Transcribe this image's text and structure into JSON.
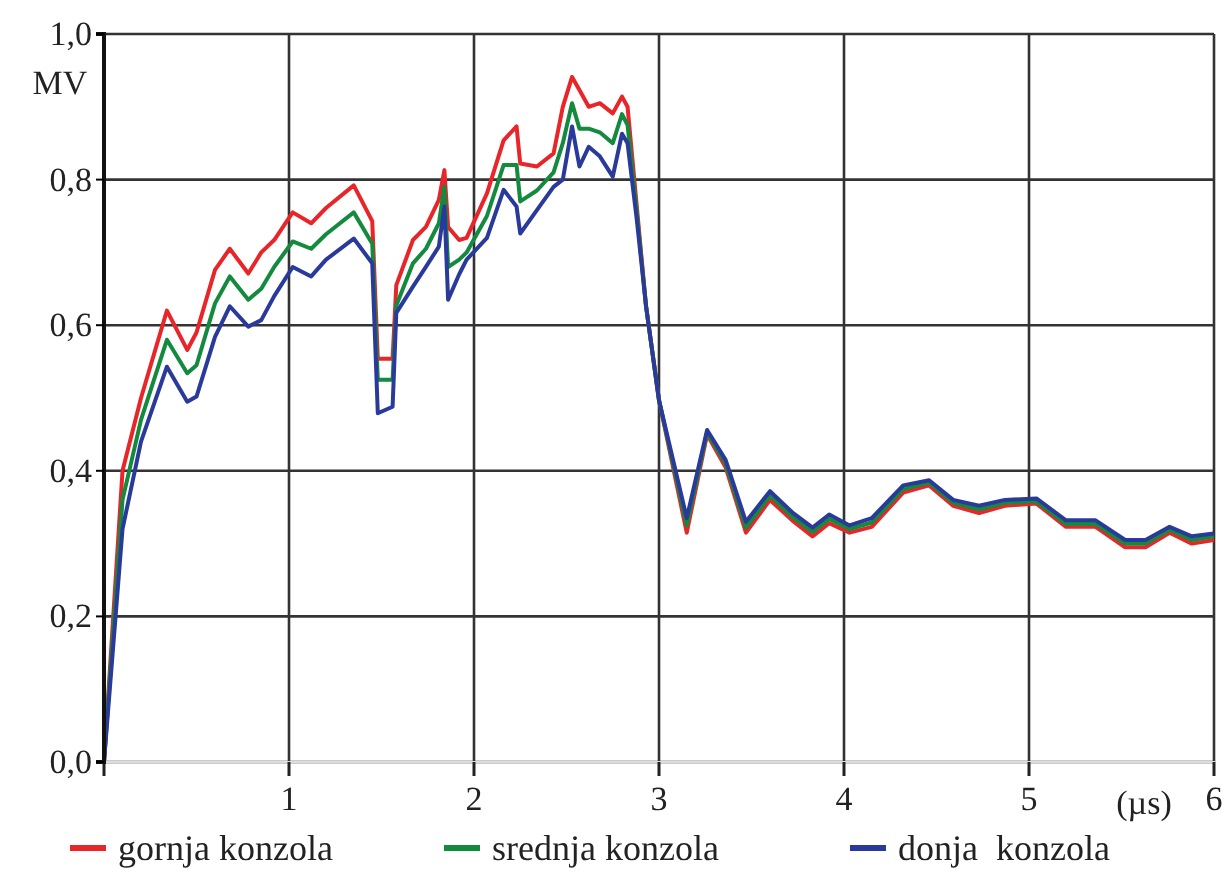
{
  "chart_data": {
    "type": "line",
    "xlabel": "(µs)",
    "ylabel": "MV",
    "x": [
      0,
      0.1,
      0.2,
      0.34,
      0.45,
      0.5,
      0.6,
      0.68,
      0.78,
      0.85,
      0.92,
      1.02,
      1.12,
      1.2,
      1.35,
      1.45,
      1.48,
      1.56,
      1.58,
      1.67,
      1.74,
      1.81,
      1.84,
      1.86,
      1.92,
      1.96,
      2.07,
      2.16,
      2.23,
      2.25,
      2.34,
      2.43,
      2.48,
      2.53,
      2.57,
      2.62,
      2.68,
      2.75,
      2.8,
      2.83,
      2.88,
      2.93,
      3.0,
      3.15,
      3.26,
      3.36,
      3.47,
      3.6,
      3.72,
      3.83,
      3.92,
      4.03,
      4.15,
      4.32,
      4.46,
      4.59,
      4.73,
      4.87,
      5.04,
      5.2,
      5.36,
      5.52,
      5.63,
      5.76,
      5.88,
      6.0
    ],
    "series": [
      {
        "name": "gornja konzola",
        "color": "#e8262a",
        "values": [
          0,
          0.4,
          0.5,
          0.62,
          0.566,
          0.59,
          0.676,
          0.705,
          0.671,
          0.7,
          0.717,
          0.755,
          0.74,
          0.761,
          0.792,
          0.743,
          0.554,
          0.554,
          0.655,
          0.717,
          0.735,
          0.772,
          0.813,
          0.735,
          0.717,
          0.72,
          0.781,
          0.854,
          0.873,
          0.822,
          0.818,
          0.836,
          0.9,
          0.941,
          0.923,
          0.9,
          0.905,
          0.891,
          0.914,
          0.9,
          0.763,
          0.626,
          0.497,
          0.315,
          0.45,
          0.405,
          0.315,
          0.36,
          0.332,
          0.31,
          0.328,
          0.315,
          0.323,
          0.37,
          0.38,
          0.352,
          0.342,
          0.352,
          0.355,
          0.323,
          0.323,
          0.295,
          0.295,
          0.315,
          0.3,
          0.305
        ]
      },
      {
        "name": "srednja konzola",
        "color": "#138a3e",
        "values": [
          0,
          0.36,
          0.47,
          0.58,
          0.534,
          0.545,
          0.63,
          0.667,
          0.635,
          0.65,
          0.68,
          0.715,
          0.705,
          0.725,
          0.755,
          0.712,
          0.525,
          0.525,
          0.627,
          0.685,
          0.705,
          0.74,
          0.79,
          0.68,
          0.69,
          0.7,
          0.75,
          0.82,
          0.82,
          0.77,
          0.785,
          0.81,
          0.85,
          0.905,
          0.87,
          0.87,
          0.865,
          0.85,
          0.89,
          0.875,
          0.755,
          0.626,
          0.497,
          0.325,
          0.453,
          0.41,
          0.322,
          0.366,
          0.337,
          0.316,
          0.334,
          0.32,
          0.329,
          0.375,
          0.384,
          0.356,
          0.347,
          0.356,
          0.358,
          0.327,
          0.327,
          0.3,
          0.3,
          0.319,
          0.305,
          0.31
        ]
      },
      {
        "name": "donja  konzola",
        "color": "#2a3a9a",
        "values": [
          0,
          0.32,
          0.44,
          0.543,
          0.495,
          0.502,
          0.584,
          0.626,
          0.598,
          0.607,
          0.64,
          0.68,
          0.667,
          0.69,
          0.719,
          0.685,
          0.479,
          0.488,
          0.617,
          0.653,
          0.68,
          0.708,
          0.763,
          0.635,
          0.67,
          0.69,
          0.72,
          0.786,
          0.763,
          0.726,
          0.758,
          0.79,
          0.8,
          0.873,
          0.818,
          0.845,
          0.832,
          0.804,
          0.863,
          0.85,
          0.745,
          0.626,
          0.497,
          0.335,
          0.456,
          0.415,
          0.33,
          0.372,
          0.343,
          0.322,
          0.34,
          0.325,
          0.335,
          0.38,
          0.387,
          0.36,
          0.352,
          0.36,
          0.362,
          0.332,
          0.332,
          0.305,
          0.305,
          0.323,
          0.31,
          0.314
        ]
      }
    ],
    "xlim": [
      0,
      6
    ],
    "xticks": [
      {
        "value": 0,
        "label": null
      },
      1,
      2,
      3,
      4,
      5,
      6
    ],
    "ylim": [
      0,
      1
    ],
    "yticks": [
      {
        "value": 0,
        "label": "0,0"
      },
      {
        "value": 0.2,
        "label": "0,2"
      },
      {
        "value": 0.4,
        "label": "0,4"
      },
      {
        "value": 0.6,
        "label": "0,6"
      },
      {
        "value": 0.8,
        "label": "0,8"
      },
      {
        "value": 1,
        "label": "1,0"
      }
    ],
    "grid": true,
    "legend": "bottom",
    "line_style": "solid",
    "marker": "none"
  }
}
